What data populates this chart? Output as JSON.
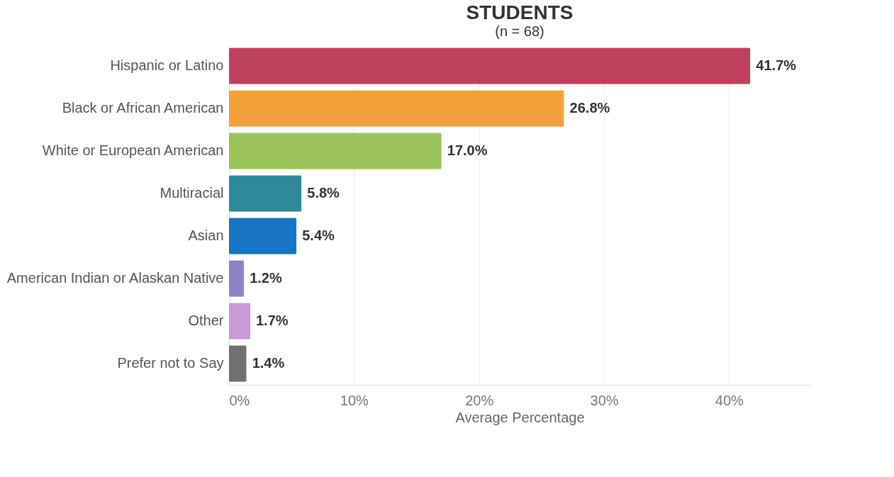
{
  "chart_data": {
    "type": "bar",
    "orientation": "horizontal",
    "title": "STUDENTS",
    "subtitle": "(n = 68)",
    "xlabel": "Average Percentage",
    "categories": [
      "Hispanic or Latino",
      "Black or African American",
      "White or European American",
      "Multiracial",
      "Asian",
      "American Indian or Alaskan Native",
      "Other",
      "Prefer not to Say"
    ],
    "values": [
      41.7,
      26.8,
      17.0,
      5.8,
      5.4,
      1.2,
      1.7,
      1.4
    ],
    "value_labels": [
      "41.7%",
      "26.8%",
      "17.0%",
      "5.8%",
      "5.4%",
      "1.2%",
      "1.7%",
      "1.4%"
    ],
    "colors": [
      "#c0415e",
      "#f2a13a",
      "#9bc25a",
      "#2e8a99",
      "#1874c4",
      "#8f82c4",
      "#c89ad6",
      "#707272"
    ],
    "xlim": [
      0,
      46.5
    ],
    "xticks": [
      {
        "value": 0,
        "label": "0%"
      },
      {
        "value": 10,
        "label": "10%"
      },
      {
        "value": 20,
        "label": "20%"
      },
      {
        "value": 30,
        "label": "30%"
      },
      {
        "value": 40,
        "label": "40%"
      }
    ],
    "grid": "x"
  }
}
